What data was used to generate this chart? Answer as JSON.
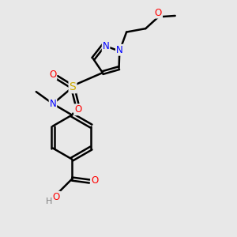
{
  "bg_color": "#e8e8e8",
  "bond_color": "#000000",
  "bond_width": 1.8,
  "atom_colors": {
    "N": "#0000ff",
    "O": "#ff0000",
    "S": "#ccaa00",
    "C": "#000000",
    "H": "#808080"
  },
  "font_size": 8.5,
  "fig_size": [
    3.0,
    3.0
  ],
  "dpi": 100
}
